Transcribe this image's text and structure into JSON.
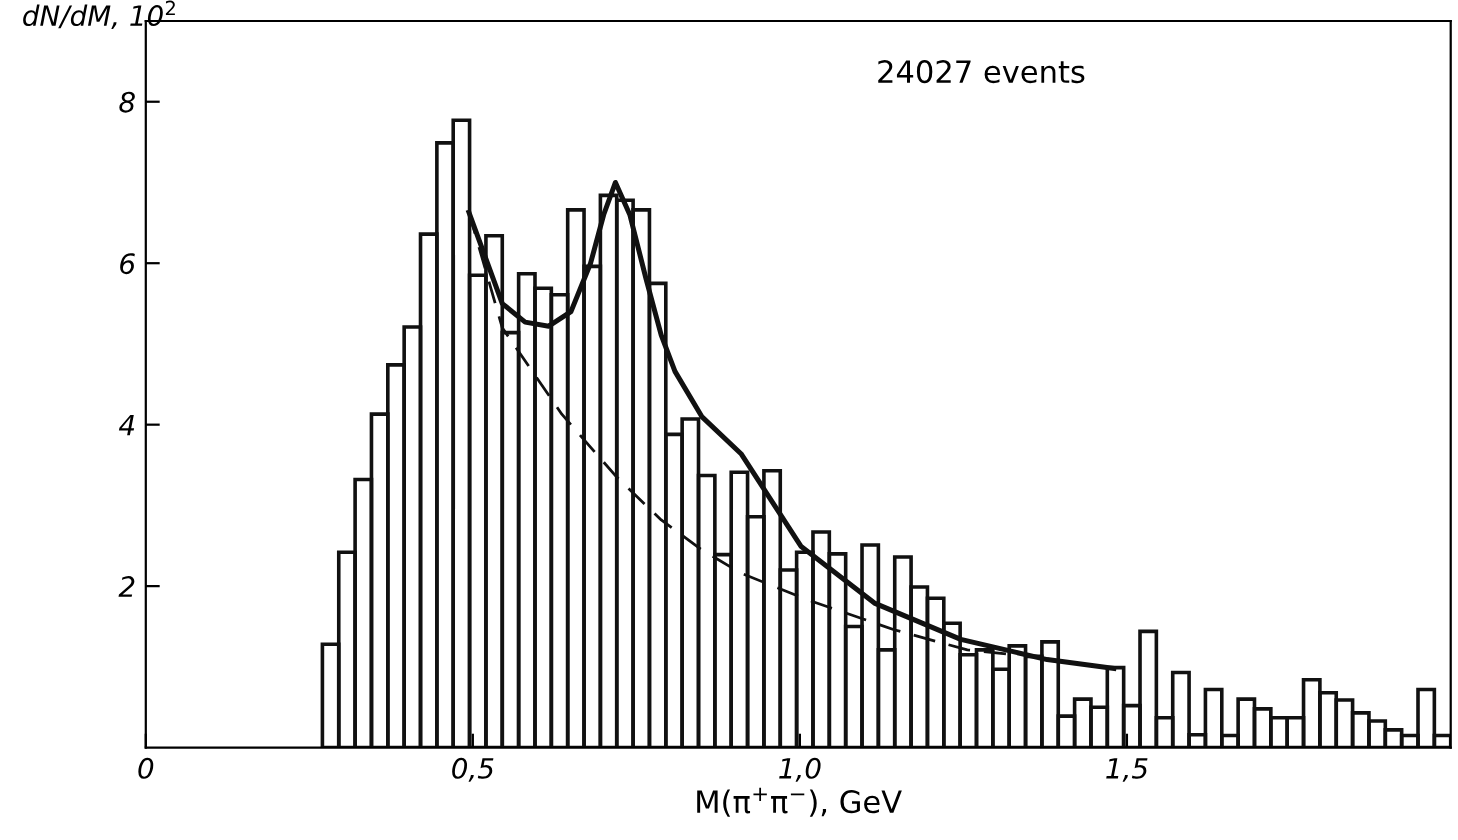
{
  "chart_data": {
    "type": "histogram",
    "xlabel": "M(π$^{+}$π$^{−}$), GeV",
    "ylabel": "dN/dM, 10$^{2}$",
    "annotations": [
      "24027 events"
    ],
    "color": "#111111",
    "bins": [
      0.27,
      0.295,
      0.32,
      0.345,
      0.37,
      0.395,
      0.42,
      0.445,
      0.47,
      0.495,
      0.52,
      0.545,
      0.57,
      0.595,
      0.62,
      0.645,
      0.67,
      0.695,
      0.72,
      0.745,
      0.77,
      0.795,
      0.82,
      0.845,
      0.87,
      0.895,
      0.92,
      0.945,
      0.97,
      0.995,
      1.02,
      1.045,
      1.07,
      1.095,
      1.12,
      1.145,
      1.17,
      1.195,
      1.22,
      1.245,
      1.27,
      1.295,
      1.32,
      1.345,
      1.37,
      1.395,
      1.42,
      1.445,
      1.47,
      1.495,
      1.52,
      1.545,
      1.57,
      1.595,
      1.62,
      1.645,
      1.67,
      1.695,
      1.72,
      1.745,
      1.77,
      1.795,
      1.82,
      1.845,
      1.87,
      1.895,
      1.92,
      1.945,
      1.97,
      1.995
    ],
    "values": [
      1.28,
      2.42,
      3.32,
      4.13,
      4.74,
      5.21,
      6.36,
      7.49,
      7.77,
      5.85,
      6.34,
      5.14,
      5.87,
      5.69,
      5.61,
      6.66,
      5.96,
      6.84,
      6.78,
      6.66,
      5.75,
      3.88,
      4.07,
      3.37,
      2.39,
      3.41,
      2.86,
      3.43,
      2.2,
      2.42,
      2.67,
      2.4,
      1.5,
      2.51,
      1.21,
      2.36,
      1.99,
      1.85,
      1.54,
      1.15,
      1.21,
      0.97,
      1.26,
      1.13,
      1.31,
      0.39,
      0.6,
      0.5,
      0.99,
      0.52,
      1.44,
      0.37,
      0.93,
      0.16,
      0.72,
      0.15,
      0.6,
      0.48,
      0.37,
      0.37,
      0.84,
      0.68,
      0.59,
      0.43,
      0.33,
      0.22,
      0.15,
      0.72,
      0.15
    ],
    "series": [
      {
        "type": "line",
        "line_style": "solid",
        "color": "#111111",
        "x": [
          0.494,
          0.545,
          0.58,
          0.616,
          0.65,
          0.68,
          0.7,
          0.718,
          0.74,
          0.765,
          0.788,
          0.809,
          0.85,
          0.91,
          1.002,
          1.114,
          1.246,
          1.378,
          1.48
        ],
        "values": [
          6.63,
          5.5,
          5.27,
          5.22,
          5.4,
          6.0,
          6.6,
          7.0,
          6.6,
          5.8,
          5.11,
          4.66,
          4.1,
          3.64,
          2.49,
          1.79,
          1.34,
          1.09,
          0.98
        ]
      },
      {
        "type": "line",
        "line_style": "dashed",
        "color": "#111111",
        "x": [
          0.494,
          0.545,
          0.636,
          0.72,
          0.788,
          0.85,
          0.91,
          1.012,
          1.144,
          1.256,
          1.33
        ],
        "values": [
          6.63,
          5.2,
          4.13,
          3.35,
          2.82,
          2.45,
          2.16,
          1.83,
          1.46,
          1.21,
          1.15
        ]
      }
    ],
    "xlim": [
      0,
      1.995
    ],
    "ylim": [
      0,
      9.0
    ],
    "xticks": [
      0,
      {
        "value": 0.5,
        "label": "0,5"
      },
      {
        "value": 1.0,
        "label": "1,0"
      },
      {
        "value": 1.5,
        "label": "1,5"
      }
    ],
    "yticks": [
      2,
      4,
      6,
      8
    ],
    "grid": false,
    "legend": false
  }
}
